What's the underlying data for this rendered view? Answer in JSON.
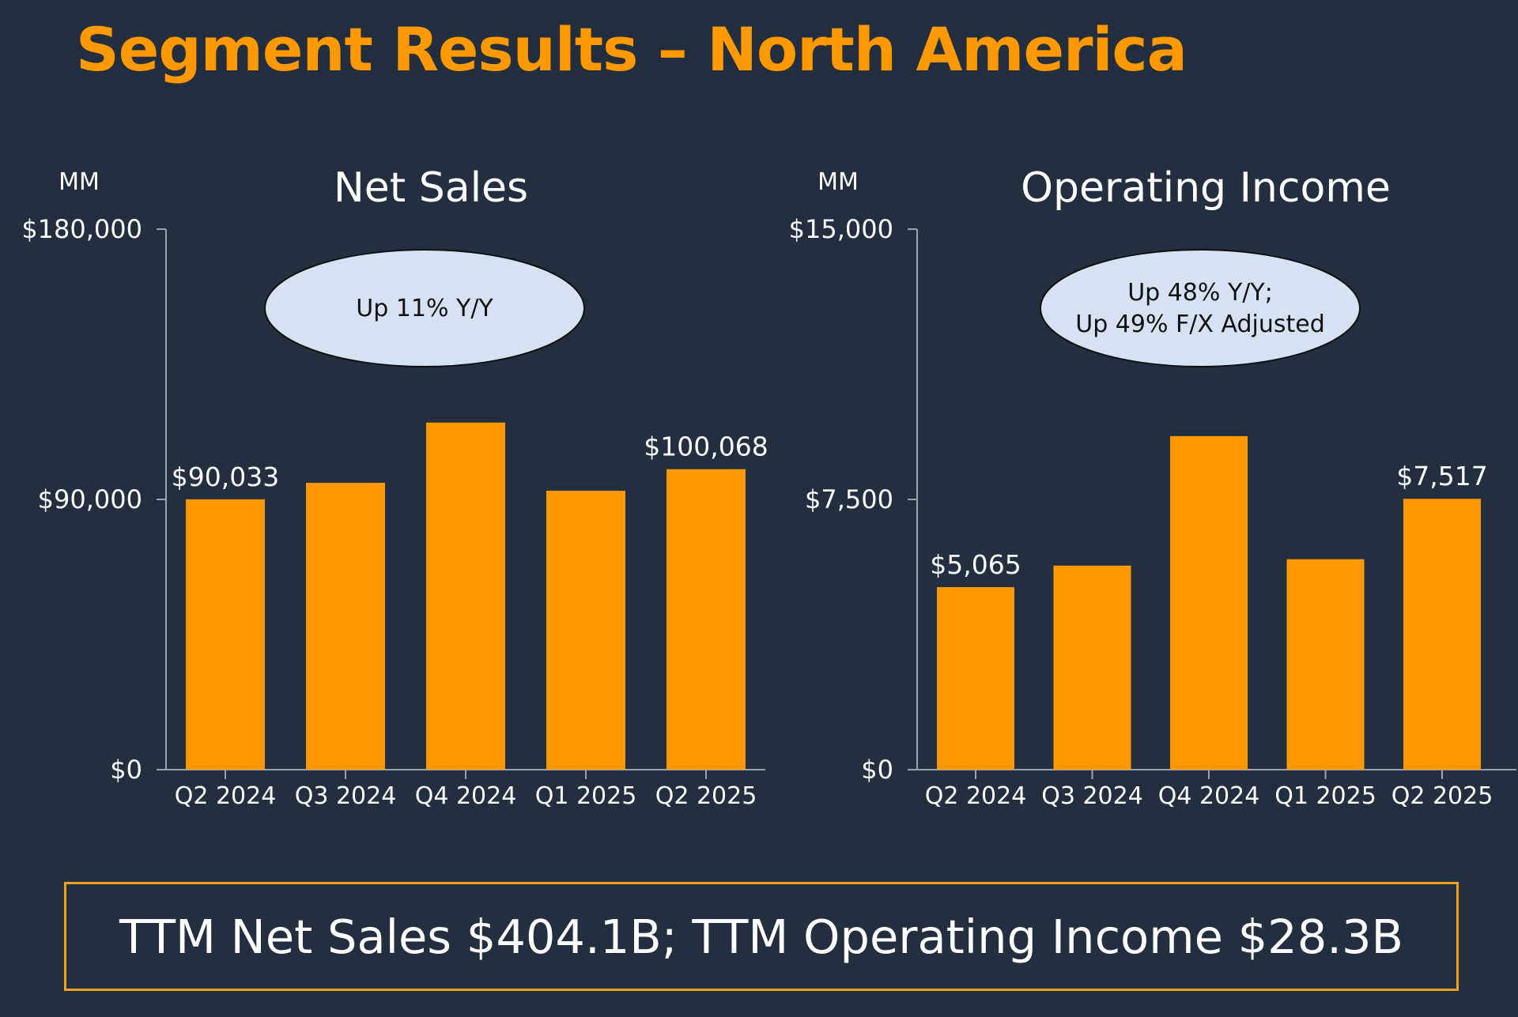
{
  "page": {
    "title": "Segment Results – North America",
    "summary": "TTM Net Sales $404.1B; TTM Operating Income $28.3B"
  },
  "colors": {
    "background": "#232f3e",
    "accent": "#ff9900",
    "bar": "#ff9900",
    "axis": "#9aa3ad",
    "callout_fill": "#d6e2f1",
    "summary_border": "#f0a020"
  },
  "chart_data": [
    {
      "type": "bar",
      "title": "Net Sales",
      "unit_label": "MM",
      "categories": [
        "Q2 2024",
        "Q3 2024",
        "Q4 2024",
        "Q1 2025",
        "Q2 2025"
      ],
      "values": [
        90033,
        95537,
        115586,
        92887,
        100068
      ],
      "data_labels": [
        "$90,033",
        "",
        "",
        "",
        "$100,068"
      ],
      "yticks": [
        "$0",
        "$90,000",
        "$180,000"
      ],
      "ylim": [
        0,
        180000
      ],
      "callout_lines": [
        "Up 11% Y/Y"
      ]
    },
    {
      "type": "bar",
      "title": "Operating Income",
      "unit_label": "MM",
      "categories": [
        "Q2 2024",
        "Q3 2024",
        "Q4 2024",
        "Q1 2025",
        "Q2 2025"
      ],
      "values": [
        5065,
        5663,
        9256,
        5841,
        7517
      ],
      "data_labels": [
        "$5,065",
        "",
        "",
        "",
        "$7,517"
      ],
      "yticks": [
        "$0",
        "$7,500",
        "$15,000"
      ],
      "ylim": [
        0,
        15000
      ],
      "callout_lines": [
        "Up 48% Y/Y;",
        "Up 49% F/X Adjusted"
      ]
    }
  ]
}
